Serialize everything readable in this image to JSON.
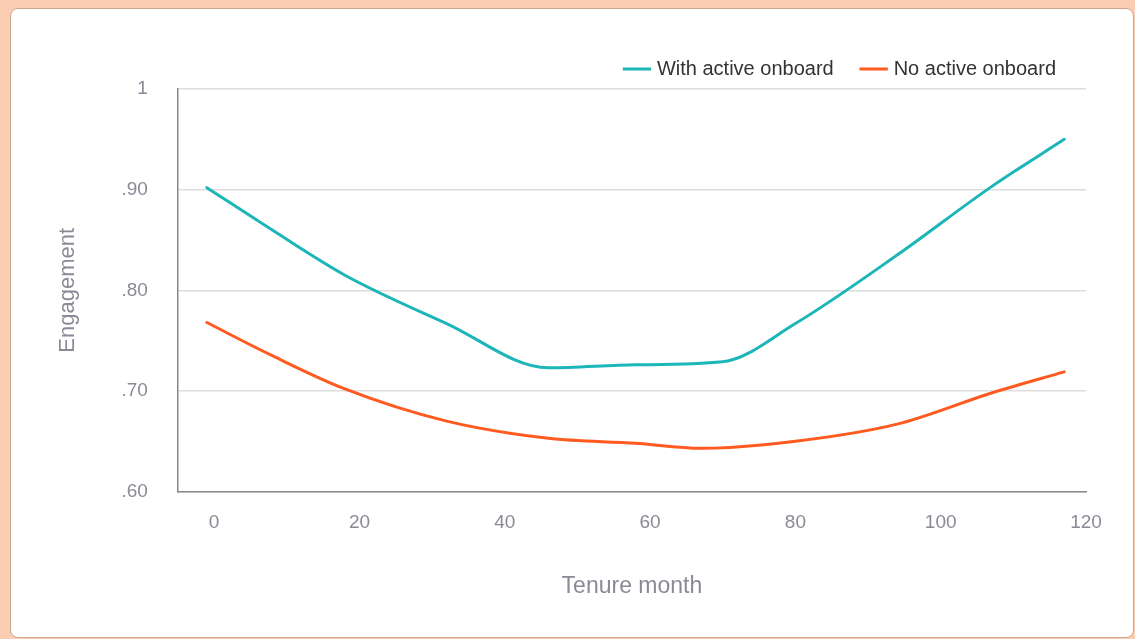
{
  "chart_data": {
    "type": "line",
    "xlabel": "Tenure month",
    "ylabel": "Engagement",
    "xlim": [
      -5,
      120
    ],
    "xticks": [
      0,
      20,
      40,
      60,
      80,
      100,
      120
    ],
    "ylim": [
      0.6,
      1
    ],
    "yticks": [
      {
        "value": 0.6,
        "label": ".60"
      },
      {
        "value": 0.7,
        "label": ".70"
      },
      {
        "value": 0.8,
        "label": ".80"
      },
      {
        "value": 0.9,
        "label": ".90"
      },
      {
        "value": 1,
        "label": "1"
      }
    ],
    "grid": "y",
    "legend": "top right",
    "marker": "none",
    "line_style": "solid",
    "series": [
      {
        "name": "With active onboard",
        "color": "#1cb6b8",
        "x": [
          -1,
          8,
          18,
          32,
          46,
          58,
          70,
          80,
          94,
          107,
          117
        ],
        "values": [
          0.902,
          0.86,
          0.815,
          0.767,
          0.723,
          0.726,
          0.729,
          0.767,
          0.835,
          0.903,
          0.95
        ]
      },
      {
        "name": "No active onboard",
        "color": "#ff5a1f",
        "x": [
          -1,
          8,
          18,
          32,
          46,
          58,
          67,
          80,
          94,
          107,
          117
        ],
        "values": [
          0.768,
          0.735,
          0.702,
          0.67,
          0.653,
          0.648,
          0.643,
          0.65,
          0.667,
          0.698,
          0.719
        ]
      }
    ]
  }
}
